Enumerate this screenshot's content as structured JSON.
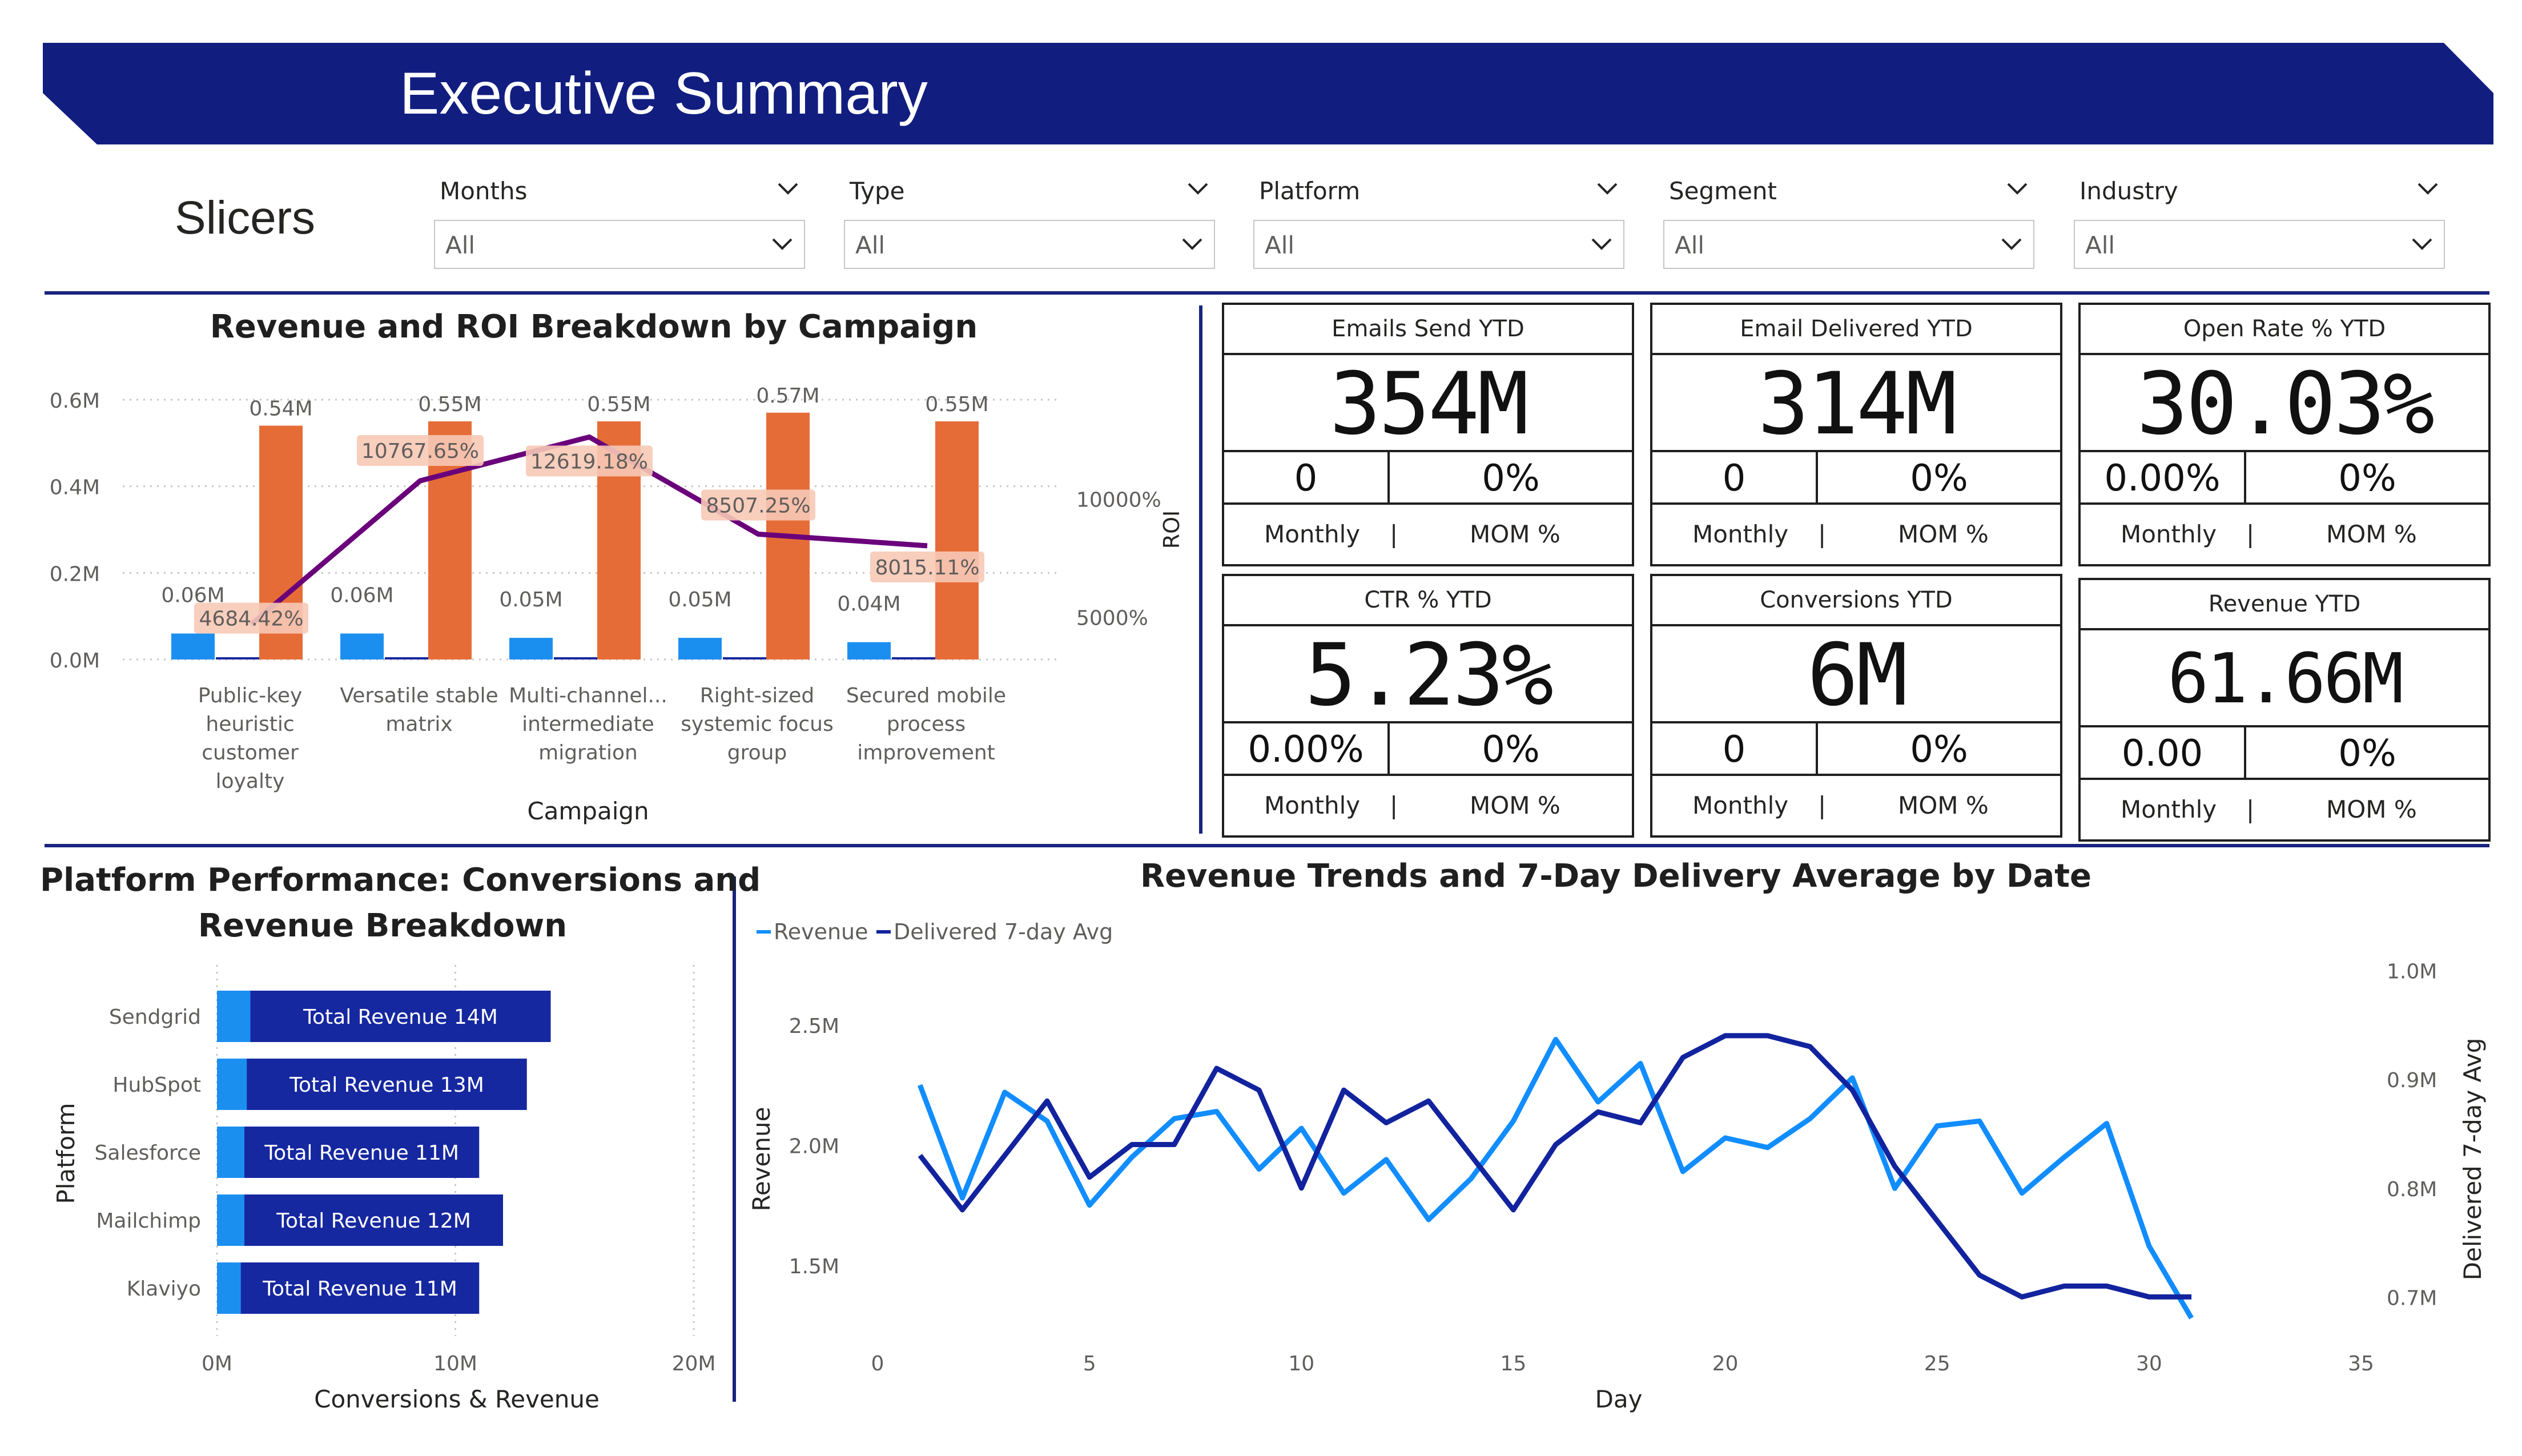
{
  "header": {
    "title": "Executive Summary"
  },
  "slicers": {
    "label": "Slicers",
    "items": [
      {
        "title": "Months",
        "value": "All"
      },
      {
        "title": "Type",
        "value": "All"
      },
      {
        "title": "Platform",
        "value": "All"
      },
      {
        "title": "Segment",
        "value": "All"
      },
      {
        "title": "Industry",
        "value": "All"
      }
    ]
  },
  "colors": {
    "brand_navy": "#111e80",
    "bar_blue": "#1b8ff0",
    "bar_orange": "#e66c37",
    "roi_line": "#6b007b",
    "navy_bar": "#1628a0",
    "revenue_line": "#118dff",
    "avg_line": "#12239e"
  },
  "kpis": [
    {
      "title": "Emails Send YTD",
      "value": "354M",
      "monthly": "0",
      "mom": "0%",
      "monthly_label": "Monthly",
      "sep": "|",
      "mom_label": "MOM %"
    },
    {
      "title": "Email Delivered YTD",
      "value": "314M",
      "monthly": "0",
      "mom": "0%",
      "monthly_label": "Monthly",
      "sep": "|",
      "mom_label": "MOM %"
    },
    {
      "title": "Open Rate % YTD",
      "value": "30.03%",
      "monthly": "0.00%",
      "mom": "0%",
      "monthly_label": "Monthly",
      "sep": "|",
      "mom_label": "MOM %"
    },
    {
      "title": "CTR % YTD",
      "value": "5.23%",
      "monthly": "0.00%",
      "mom": "0%",
      "monthly_label": "Monthly",
      "sep": "|",
      "mom_label": "MOM %"
    },
    {
      "title": "Conversions YTD",
      "value": "6M",
      "monthly": "0",
      "mom": "0%",
      "monthly_label": "Monthly",
      "sep": "|",
      "mom_label": "MOM %"
    },
    {
      "title": "Revenue YTD",
      "value": "61.66M",
      "monthly": "0.00",
      "mom": "0%",
      "monthly_label": "Monthly",
      "sep": "|",
      "mom_label": "MOM %"
    }
  ],
  "chart_data": [
    {
      "type": "bar",
      "title": "Revenue and ROI Breakdown by Campaign",
      "xlabel": "Campaign",
      "ylabel": "",
      "y2label": "ROI",
      "categories": [
        "Public-key heuristic customer loyalty",
        "Versatile stable matrix",
        "Multi-channel... intermediate migration",
        "Right-sized systemic focus group",
        "Secured mobile process improvement"
      ],
      "category_lines": [
        [
          "Public-key",
          "heuristic",
          "customer",
          "loyalty"
        ],
        [
          "Versatile stable",
          "matrix"
        ],
        [
          "Multi-channel...",
          "intermediate",
          "migration"
        ],
        [
          "Right-sized",
          "systemic focus",
          "group"
        ],
        [
          "Secured mobile",
          "process",
          "improvement"
        ]
      ],
      "series": [
        {
          "name": "",
          "values": [
            0.06,
            0.06,
            0.05,
            0.05,
            0.04
          ],
          "labels": [
            "0.06M",
            "0.06M",
            "0.05M",
            "0.05M",
            "0.04M"
          ]
        },
        {
          "name": "",
          "values": [
            0.001,
            0.001,
            0.001,
            0.001,
            0.001
          ],
          "labels": []
        },
        {
          "name": "",
          "values": [
            0.54,
            0.55,
            0.55,
            0.57,
            0.55
          ],
          "labels": [
            "0.54M",
            "0.55M",
            "0.55M",
            "0.57M",
            "0.55M"
          ]
        }
      ],
      "roi": {
        "values": [
          4684.42,
          10767.65,
          12619.18,
          8507.25,
          8015.11
        ],
        "labels": [
          "4684.42%",
          "10767.65%",
          "12619.18%",
          "8507.25%",
          "8015.11%"
        ]
      },
      "yticks": [
        "0.0M",
        "0.2M",
        "0.4M",
        "0.6M"
      ],
      "ylim": [
        0,
        0.6
      ],
      "y2ticks": [
        "5000%",
        "10000%"
      ],
      "y2lim": [
        3200,
        14200
      ],
      "grid": true
    },
    {
      "type": "bar",
      "orientation": "horizontal",
      "title": "Platform Performance: Conversions and Revenue Breakdown",
      "title_lines": [
        "Platform Performance: Conversions and",
        "Revenue Breakdown"
      ],
      "xlabel": "Conversions & Revenue",
      "ylabel": "Platform",
      "categories": [
        "Sendgrid",
        "HubSpot",
        "Salesforce",
        "Mailchimp",
        "Klaviyo"
      ],
      "series": [
        {
          "name": "",
          "values": [
            1.4,
            1.25,
            1.15,
            1.15,
            1.0
          ]
        },
        {
          "name": "",
          "values": [
            14,
            13,
            11,
            12,
            11
          ],
          "labels": [
            "Total Revenue 14M",
            "Total Revenue 13M",
            "Total Revenue 11M",
            "Total Revenue 12M",
            "Total Revenue 11M"
          ]
        }
      ],
      "xticks": [
        "0M",
        "10M",
        "20M"
      ],
      "xlim": [
        0,
        20
      ],
      "grid": true
    },
    {
      "type": "line",
      "title": "Revenue Trends and 7-Day Delivery Average by Date",
      "xlabel": "Day",
      "ylabel": "Revenue",
      "y2label": "Delivered 7-day Avg",
      "legend": "top-left",
      "x": [
        1,
        2,
        3,
        4,
        5,
        6,
        7,
        8,
        9,
        10,
        11,
        12,
        13,
        14,
        15,
        16,
        17,
        18,
        19,
        20,
        21,
        22,
        23,
        24,
        25,
        26,
        27,
        28,
        29,
        30,
        31
      ],
      "series": [
        {
          "name": "Revenue",
          "axis": "left",
          "values": [
            2.25,
            1.78,
            2.22,
            2.1,
            1.75,
            1.95,
            2.11,
            2.14,
            1.9,
            2.07,
            1.8,
            1.94,
            1.69,
            1.86,
            2.1,
            2.44,
            2.18,
            2.34,
            1.89,
            2.03,
            1.99,
            2.11,
            2.28,
            1.82,
            2.08,
            2.1,
            1.8,
            1.95,
            2.09,
            1.58,
            1.28
          ]
        },
        {
          "name": "Delivered 7-day Avg",
          "axis": "right",
          "values": [
            0.83,
            0.78,
            0.83,
            0.88,
            0.81,
            0.84,
            0.84,
            0.91,
            0.89,
            0.8,
            0.89,
            0.86,
            0.88,
            0.83,
            0.78,
            0.84,
            0.87,
            0.86,
            0.92,
            0.94,
            0.94,
            0.93,
            0.89,
            0.82,
            0.77,
            0.72,
            0.7,
            0.71,
            0.71,
            0.7,
            0.7
          ]
        }
      ],
      "xticks": [
        "0",
        "5",
        "10",
        "15",
        "20",
        "25",
        "30",
        "35"
      ],
      "xlim": [
        0,
        35
      ],
      "yticks": [
        "1.5M",
        "2.0M",
        "2.5M"
      ],
      "ylim": [
        1.3,
        2.75
      ],
      "y2ticks": [
        "0.7M",
        "0.8M",
        "0.9M",
        "1.0M"
      ],
      "y2lim": [
        0.685,
        1.005
      ]
    }
  ]
}
